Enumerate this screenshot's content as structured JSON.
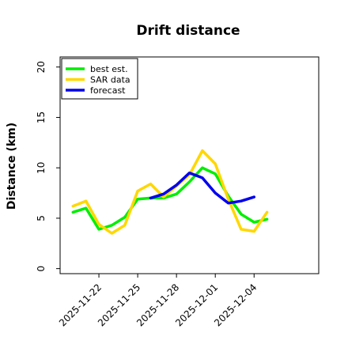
{
  "chart_data": {
    "type": "line",
    "title": "Drift distance",
    "xlabel": "",
    "ylabel": "Distance (km)",
    "ylim": [
      -0.5,
      21
    ],
    "yticks": [
      0,
      5,
      10,
      15,
      20
    ],
    "xlim": [
      "2025-11-19T00:00",
      "2025-12-09T00:00"
    ],
    "xticks": [
      "2025-11-22",
      "2025-11-25",
      "2025-11-28",
      "2025-12-01",
      "2025-12-04"
    ],
    "grid": false,
    "legend": {
      "location": "upper-left"
    },
    "series": [
      {
        "name": "best est.",
        "color": "#00ee00",
        "points": [
          {
            "x": "2025-11-20T00:00",
            "y": 5.6
          },
          {
            "x": "2025-11-21T00:00",
            "y": 6.0
          },
          {
            "x": "2025-11-22T00:00",
            "y": 3.9
          },
          {
            "x": "2025-11-23T00:00",
            "y": 4.3
          },
          {
            "x": "2025-11-24T00:00",
            "y": 5.1
          },
          {
            "x": "2025-11-25T00:00",
            "y": 6.9
          },
          {
            "x": "2025-11-26T00:00",
            "y": 7.0
          },
          {
            "x": "2025-11-27T00:00",
            "y": 7.0
          },
          {
            "x": "2025-11-28T00:00",
            "y": 7.4
          },
          {
            "x": "2025-11-29T00:00",
            "y": 8.6
          },
          {
            "x": "2025-11-30T00:00",
            "y": 10.0
          },
          {
            "x": "2025-12-01T00:00",
            "y": 9.4
          },
          {
            "x": "2025-12-02T00:00",
            "y": 7.2
          },
          {
            "x": "2025-12-03T00:00",
            "y": 5.4
          },
          {
            "x": "2025-12-04T00:00",
            "y": 4.6
          },
          {
            "x": "2025-12-05T00:00",
            "y": 4.9
          }
        ]
      },
      {
        "name": "SAR data",
        "color": "#ffd700",
        "points": [
          {
            "x": "2025-11-20T00:00",
            "y": 6.2
          },
          {
            "x": "2025-11-21T00:00",
            "y": 6.7
          },
          {
            "x": "2025-11-22T00:00",
            "y": 4.4
          },
          {
            "x": "2025-11-23T00:00",
            "y": 3.5
          },
          {
            "x": "2025-11-24T00:00",
            "y": 4.3
          },
          {
            "x": "2025-11-25T00:00",
            "y": 7.7
          },
          {
            "x": "2025-11-26T00:00",
            "y": 8.4
          },
          {
            "x": "2025-11-27T00:00",
            "y": 7.1
          },
          {
            "x": "2025-11-28T00:00",
            "y": 8.2
          },
          {
            "x": "2025-11-29T00:00",
            "y": 9.3
          },
          {
            "x": "2025-11-30T00:00",
            "y": 11.7
          },
          {
            "x": "2025-12-01T00:00",
            "y": 10.4
          },
          {
            "x": "2025-12-02T00:00",
            "y": 6.9
          },
          {
            "x": "2025-12-03T00:00",
            "y": 3.9
          },
          {
            "x": "2025-12-04T00:00",
            "y": 3.7
          },
          {
            "x": "2025-12-05T00:00",
            "y": 5.6
          }
        ]
      },
      {
        "name": "forecast",
        "color": "#0000ee",
        "points": [
          {
            "x": "2025-11-26T00:00",
            "y": 7.0
          },
          {
            "x": "2025-11-27T00:00",
            "y": 7.4
          },
          {
            "x": "2025-11-28T00:00",
            "y": 8.3
          },
          {
            "x": "2025-11-29T00:00",
            "y": 9.5
          },
          {
            "x": "2025-11-30T00:00",
            "y": 9.0
          },
          {
            "x": "2025-12-01T00:00",
            "y": 7.5
          },
          {
            "x": "2025-12-02T00:00",
            "y": 6.5
          },
          {
            "x": "2025-12-03T00:00",
            "y": 6.7
          },
          {
            "x": "2025-12-04T00:00",
            "y": 7.1
          }
        ]
      }
    ]
  }
}
